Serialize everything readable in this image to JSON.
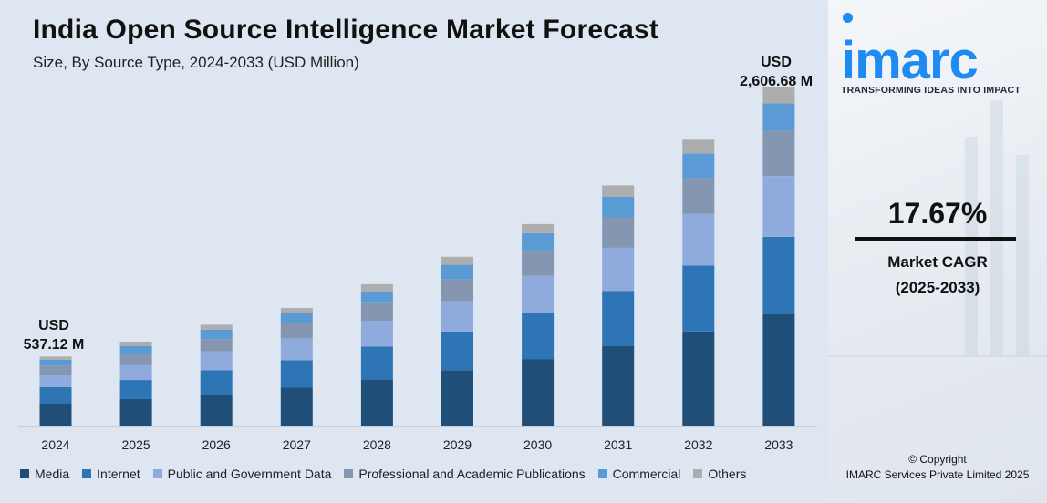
{
  "header": {
    "title": "India Open Source Intelligence Market Forecast",
    "subtitle": "Size, By Source Type, 2024-2033 (USD Million)"
  },
  "annotations": {
    "start_unit": "USD",
    "start_value": "537.12 M",
    "end_unit": "USD",
    "end_value": "2,606.68 M"
  },
  "brand": {
    "logo_text": "imarc",
    "tagline": "TRANSFORMING IDEAS INTO IMPACT",
    "color": "#1e8bf2"
  },
  "cagr": {
    "value": "17.67%",
    "label": "Market CAGR",
    "period": "(2025-2033)"
  },
  "footer": {
    "copyright": "© Copyright",
    "company": "IMARC Services Private Limited 2025"
  },
  "chart_data": {
    "type": "bar",
    "stacked": true,
    "title": "India Open Source Intelligence Market Forecast",
    "subtitle": "Size, By Source Type, 2024-2033 (USD Million)",
    "categories": [
      "2024",
      "2025",
      "2026",
      "2027",
      "2028",
      "2029",
      "2030",
      "2031",
      "2032",
      "2033"
    ],
    "ylim": [
      0,
      2700
    ],
    "grid": false,
    "legend_position": "bottom",
    "series": [
      {
        "name": "Media",
        "color": "#1f4e79",
        "values": [
          179,
          212,
          248,
          298,
          360,
          432,
          518,
          617,
          730,
          862
        ]
      },
      {
        "name": "Internet",
        "color": "#2e75b6",
        "values": [
          122,
          145,
          183,
          211,
          254,
          298,
          357,
          426,
          508,
          596
        ]
      },
      {
        "name": "Public and Government Data",
        "color": "#8faadc",
        "values": [
          94,
          113,
          145,
          168,
          198,
          234,
          284,
          331,
          398,
          467
        ]
      },
      {
        "name": "Professional and Academic Publications",
        "color": "#8496b0",
        "values": [
          72,
          89,
          96,
          121,
          142,
          169,
          194,
          234,
          276,
          350
        ]
      },
      {
        "name": "Commercial",
        "color": "#5b9bd5",
        "values": [
          46,
          59,
          72,
          72,
          85,
          110,
          134,
          160,
          187,
          210
        ]
      },
      {
        "name": "Others",
        "color": "#adadad",
        "values": [
          24,
          34,
          38,
          40,
          55,
          62,
          69,
          86,
          106,
          122
        ]
      }
    ]
  }
}
